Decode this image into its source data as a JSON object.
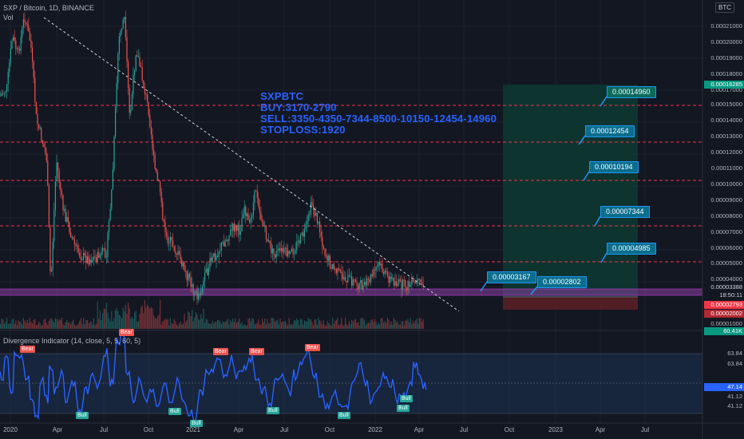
{
  "header": {
    "symbol_line": "SXP / Bitcoin, 1D, BINANCE",
    "volume_label": "Vol",
    "currency_badge": "BTC"
  },
  "annotation": {
    "lines": [
      "SXPBTC",
      "BUY:3170-2790",
      "SELL:3350-4350-7344-8500-10150-12454-14960",
      "STOPLOSS:1920"
    ]
  },
  "price_targets": [
    {
      "label": "0.00014960",
      "style": "green"
    },
    {
      "label": "0.00012454",
      "style": "blue"
    },
    {
      "label": "0.00010194",
      "style": "blue"
    },
    {
      "label": "0.00007344",
      "style": "blue"
    },
    {
      "label": "0.00004985",
      "style": "blue"
    },
    {
      "label": "0.00003167",
      "style": "blue"
    },
    {
      "label": "0.00002802",
      "style": "blue"
    }
  ],
  "price_axis": {
    "ticks": [
      "0.00021000",
      "0.00020000",
      "0.00019000",
      "0.00018000",
      "0.00017000",
      "0.00015000",
      "0.00014000",
      "0.00013000",
      "0.00012000",
      "0.00011000",
      "0.00010000",
      "0.00009000",
      "0.00008000",
      "0.00007000",
      "0.00006000",
      "0.00005000",
      "0.00004000",
      "0.00001000"
    ],
    "tags": {
      "target": "0.00016285",
      "last": "0.00003388",
      "countdown": "18:50:11",
      "entry": "0.00002793",
      "stop": "0.00002002",
      "volume": "60.41K"
    }
  },
  "indicator": {
    "title": "Divergence Indicator (14, close, 5, 5, 60, 5)",
    "ticks": [
      "63.84",
      "63.84",
      "41.12",
      "41.12"
    ],
    "current": "47.14",
    "signals": [
      {
        "label": "Bear",
        "kind": "bear"
      },
      {
        "label": "Bear",
        "kind": "bear"
      },
      {
        "label": "Bear",
        "kind": "bear"
      },
      {
        "label": "Bear",
        "kind": "bear"
      },
      {
        "label": "Bear",
        "kind": "bear"
      },
      {
        "label": "Bull",
        "kind": "bull"
      },
      {
        "label": "Bull",
        "kind": "bull"
      },
      {
        "label": "Bull",
        "kind": "bull"
      },
      {
        "label": "Bull",
        "kind": "bull"
      },
      {
        "label": "Bull",
        "kind": "bull"
      },
      {
        "label": "Bull",
        "kind": "bull"
      },
      {
        "label": "Bull",
        "kind": "bull"
      }
    ]
  },
  "time_axis": [
    "2020",
    "Apr",
    "Jul",
    "Oct",
    "2021",
    "Apr",
    "Jul",
    "Oct",
    "2022",
    "Apr",
    "Jul",
    "Oct",
    "2023",
    "Apr",
    "Jul"
  ],
  "colors": {
    "background": "#131722",
    "candle_up": "#26a69a",
    "candle_down": "#ef5350",
    "indicator_line": "#2962ff",
    "target_line": "#f23645",
    "note_text": "#2962ff"
  }
}
